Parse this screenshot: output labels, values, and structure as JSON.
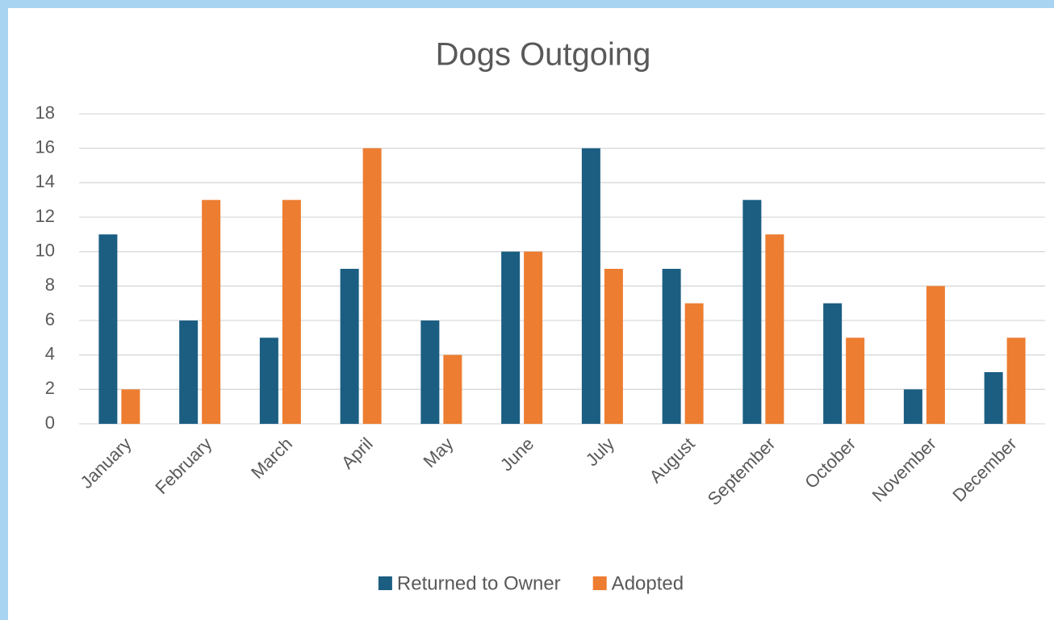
{
  "chart_data": {
    "type": "bar",
    "title": "Dogs Outgoing",
    "categories": [
      "January",
      "February",
      "March",
      "April",
      "May",
      "June",
      "July",
      "August",
      "September",
      "October",
      "November",
      "December"
    ],
    "series": [
      {
        "name": "Returned to Owner",
        "color": "#1b5e82",
        "values": [
          11,
          6,
          5,
          9,
          6,
          10,
          16,
          9,
          13,
          7,
          2,
          3
        ]
      },
      {
        "name": "Adopted",
        "color": "#ed7d31",
        "values": [
          2,
          13,
          13,
          16,
          4,
          10,
          9,
          7,
          11,
          5,
          8,
          5
        ]
      }
    ],
    "ylim": [
      0,
      18
    ],
    "yticks": [
      0,
      2,
      4,
      6,
      8,
      10,
      12,
      14,
      16,
      18
    ],
    "grid": true,
    "legend": "bottom"
  }
}
